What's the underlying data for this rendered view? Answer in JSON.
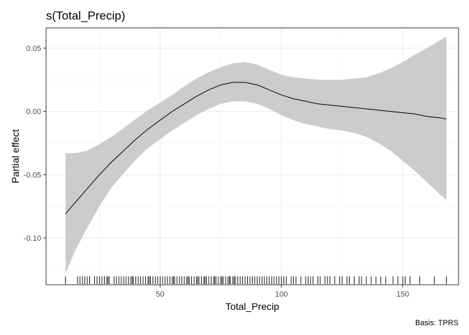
{
  "chart_data": {
    "type": "line",
    "title": "s(Total_Precip)",
    "xlabel": "Total_Precip",
    "ylabel": "Partial effect",
    "caption": "Basis: TPRS",
    "xlim": [
      3,
      173
    ],
    "ylim": [
      -0.137,
      0.066
    ],
    "x_ticks": [
      50,
      100,
      150
    ],
    "x_tick_labels": [
      "50",
      "100",
      "150"
    ],
    "y_ticks": [
      -0.1,
      -0.05,
      0.0,
      0.05
    ],
    "y_tick_labels": [
      "-0.10",
      "-0.05",
      "0.00",
      "0.05"
    ],
    "grid": true,
    "series": [
      {
        "kind": "smooth_estimate",
        "x": [
          11,
          15,
          20,
          25,
          30,
          35,
          40,
          45,
          50,
          55,
          60,
          65,
          70,
          75,
          80,
          85,
          90,
          95,
          100,
          105,
          110,
          115,
          120,
          125,
          130,
          135,
          140,
          145,
          150,
          155,
          160,
          165,
          168
        ],
        "y": [
          -0.081,
          -0.072,
          -0.061,
          -0.05,
          -0.04,
          -0.031,
          -0.022,
          -0.014,
          -0.007,
          0.0,
          0.006,
          0.012,
          0.017,
          0.021,
          0.023,
          0.023,
          0.021,
          0.017,
          0.013,
          0.01,
          0.008,
          0.006,
          0.005,
          0.004,
          0.003,
          0.002,
          0.001,
          0.0,
          -0.001,
          -0.002,
          -0.004,
          -0.005,
          -0.006
        ],
        "lower": [
          -0.128,
          -0.11,
          -0.092,
          -0.075,
          -0.06,
          -0.049,
          -0.038,
          -0.029,
          -0.022,
          -0.015,
          -0.009,
          -0.003,
          0.002,
          0.006,
          0.008,
          0.008,
          0.006,
          0.002,
          -0.003,
          -0.007,
          -0.01,
          -0.012,
          -0.014,
          -0.015,
          -0.017,
          -0.02,
          -0.025,
          -0.031,
          -0.039,
          -0.047,
          -0.056,
          -0.065,
          -0.07
        ],
        "upper": [
          -0.033,
          -0.033,
          -0.031,
          -0.026,
          -0.02,
          -0.013,
          -0.006,
          0.001,
          0.007,
          0.013,
          0.02,
          0.026,
          0.031,
          0.035,
          0.038,
          0.039,
          0.037,
          0.033,
          0.029,
          0.027,
          0.026,
          0.025,
          0.025,
          0.025,
          0.026,
          0.027,
          0.03,
          0.034,
          0.039,
          0.045,
          0.05,
          0.056,
          0.059
        ]
      }
    ],
    "rug_x": [
      11,
      16,
      17,
      18,
      19,
      20,
      21,
      23,
      24,
      25,
      26,
      27,
      28,
      28.5,
      29,
      31,
      32,
      33,
      34,
      35,
      36,
      37,
      38,
      38.5,
      39,
      40,
      41,
      42,
      43,
      44,
      45,
      45.5,
      46,
      47,
      48,
      49,
      50,
      51,
      52,
      53,
      54,
      55,
      55.5,
      56,
      57,
      58,
      59,
      60,
      61,
      61.5,
      62,
      63,
      64,
      65,
      65.5,
      66,
      67,
      68,
      68.5,
      69,
      70,
      71,
      72,
      72.5,
      73,
      74,
      75,
      75.5,
      76,
      77,
      78,
      78.5,
      79,
      80,
      80.5,
      81,
      82,
      83,
      84,
      85,
      86,
      87,
      88,
      89,
      90,
      91,
      92,
      93,
      94,
      95,
      96,
      97,
      98,
      99,
      100,
      101,
      102,
      104,
      105,
      106,
      108,
      110,
      111,
      112,
      113,
      115,
      116,
      118,
      119,
      120,
      122,
      124,
      125,
      127,
      128,
      130,
      132,
      133,
      135,
      137,
      139,
      141,
      143,
      146,
      148,
      150,
      151,
      153,
      157,
      163,
      168
    ]
  }
}
